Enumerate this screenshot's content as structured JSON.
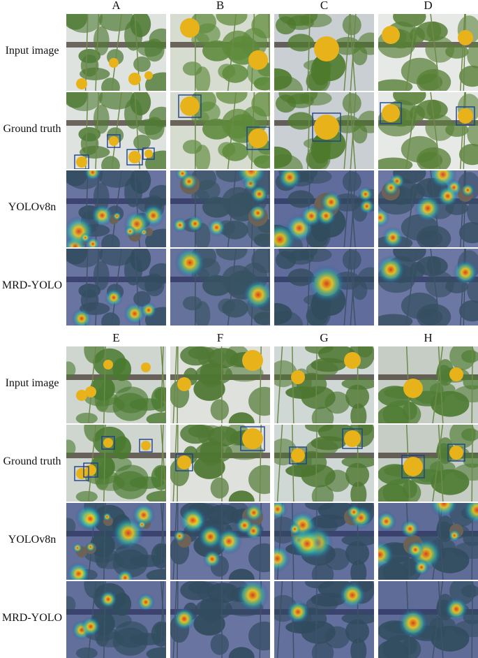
{
  "panels": [
    {
      "columns": [
        "A",
        "B",
        "C",
        "D"
      ],
      "rows": [
        "Input image",
        "Ground truth",
        "YOLOv8n",
        "MRD-YOLO"
      ]
    },
    {
      "columns": [
        "E",
        "F",
        "G",
        "H"
      ],
      "rows": [
        "Input image",
        "Ground truth",
        "YOLOv8n",
        "MRD-YOLO"
      ]
    }
  ],
  "colors": {
    "foliage": "#4f7a34",
    "fruit": "#e8b21a",
    "box": "#1f3f8a",
    "heat_low": "#20307a",
    "heat_high": "#e23a1a"
  }
}
